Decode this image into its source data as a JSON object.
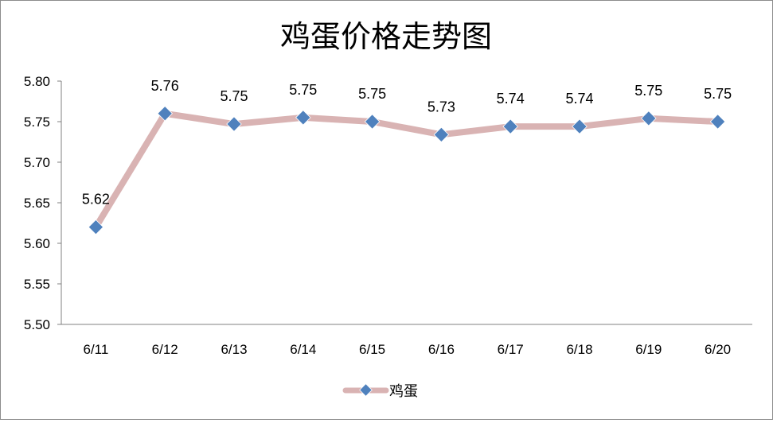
{
  "chart_data": {
    "type": "line",
    "title": "鸡蛋价格走势图",
    "categories": [
      "6/11",
      "6/12",
      "6/13",
      "6/14",
      "6/15",
      "6/16",
      "6/17",
      "6/18",
      "6/19",
      "6/20"
    ],
    "series": [
      {
        "name": "鸡蛋",
        "values": [
          5.62,
          5.76,
          5.747,
          5.755,
          5.75,
          5.734,
          5.744,
          5.744,
          5.754,
          5.75
        ],
        "labels": [
          "5.62",
          "5.76",
          "5.75",
          "5.75",
          "5.75",
          "5.73",
          "5.74",
          "5.74",
          "5.75",
          "5.75"
        ],
        "line_color": "#D9B3B3",
        "marker_color": "#4F81BD",
        "marker": "diamond"
      }
    ],
    "ylim": [
      5.5,
      5.8
    ],
    "yticks": [
      "5.80",
      "5.75",
      "5.70",
      "5.65",
      "5.60",
      "5.55",
      "5.50"
    ],
    "grid": false,
    "legend": "bottom"
  }
}
